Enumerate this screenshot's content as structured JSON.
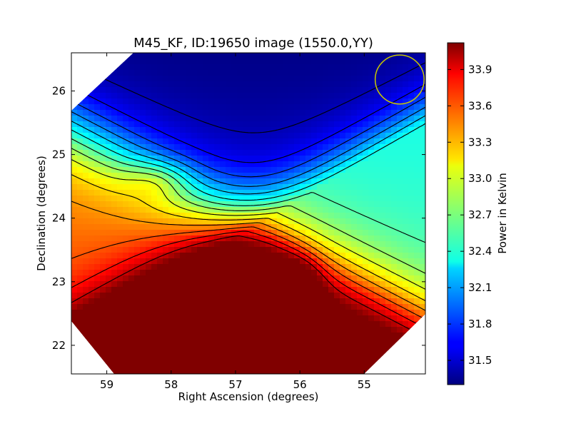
{
  "chart_data": {
    "type": "heatmap",
    "title": "M45_KF, ID:19650 image (1550.0,YY)",
    "xlabel": "Right Ascension (degrees)",
    "ylabel": "Declination (degrees)",
    "colorbar_label": "Power in Kelvin",
    "x_range": [
      59.55,
      54.05
    ],
    "y_range": [
      21.55,
      26.6
    ],
    "x_ticks": [
      "59",
      "58",
      "57",
      "56",
      "55"
    ],
    "x_tick_values": [
      59,
      58,
      57,
      56,
      55
    ],
    "y_ticks": [
      "22",
      "23",
      "24",
      "25",
      "26"
    ],
    "y_tick_values": [
      22,
      23,
      24,
      25,
      26
    ],
    "colorbar_range": [
      31.3,
      34.12
    ],
    "colorbar_ticks": [
      "31.5",
      "31.8",
      "32.1",
      "32.4",
      "32.7",
      "33.0",
      "33.3",
      "33.6",
      "33.9"
    ],
    "colorbar_tick_values": [
      31.5,
      31.8,
      32.1,
      32.4,
      32.7,
      33.0,
      33.3,
      33.6,
      33.9
    ],
    "colormap": "jet",
    "contours": true,
    "beam_circle": {
      "ra": 54.45,
      "dec": 26.18,
      "radius_deg": 0.38,
      "color": "#c8c800"
    },
    "field_shape": "diamond",
    "peak": {
      "ra": 56.1,
      "dec": 22.92,
      "value": 34.1
    }
  }
}
